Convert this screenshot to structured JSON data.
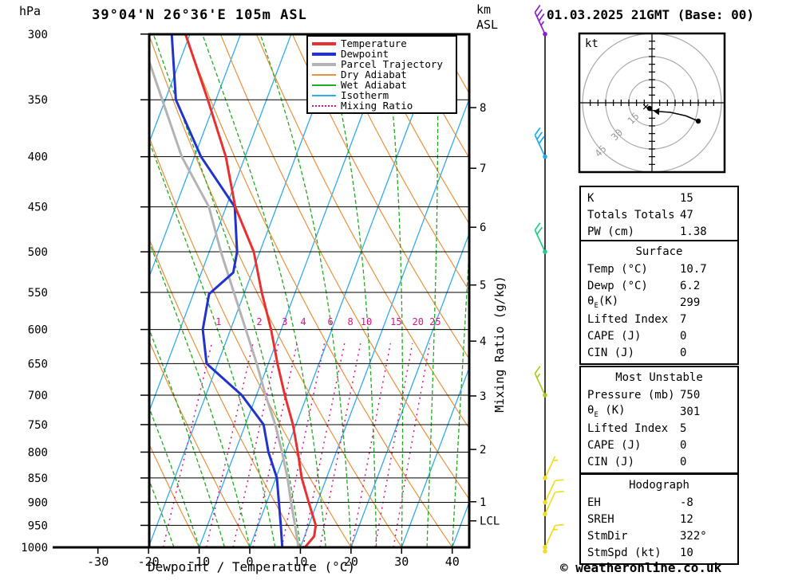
{
  "header": {
    "pressure_unit": "hPa",
    "title": "39°04'N 26°36'E 105m ASL",
    "date": "01.03.2025 21GMT (Base: 00)",
    "altitude_unit_line1": "km",
    "altitude_unit_line2": "ASL"
  },
  "legend": [
    {
      "key": "temperature",
      "label": "Temperature",
      "color": "#e83030",
      "style": "solid-thick"
    },
    {
      "key": "dewpoint",
      "label": "Dewpoint",
      "color": "#2233cc",
      "style": "solid-thick"
    },
    {
      "key": "parcel",
      "label": "Parcel Trajectory",
      "color": "#b3b3b3",
      "style": "solid-thick"
    },
    {
      "key": "dry_adiabat",
      "label": "Dry Adiabat",
      "color": "#e8913e",
      "style": "solid-thin"
    },
    {
      "key": "wet_adiabat",
      "label": "Wet Adiabat",
      "color": "#22aa22",
      "style": "solid-thin"
    },
    {
      "key": "isotherm",
      "label": "Isotherm",
      "color": "#33aaee",
      "style": "solid-thin"
    },
    {
      "key": "mixing_ratio",
      "label": "Mixing Ratio",
      "color": "#dd1188",
      "style": "dotted"
    }
  ],
  "chart_data": {
    "type": "skewt_log_p_sounding",
    "pressure_ticks_hpa": [
      300,
      350,
      400,
      450,
      500,
      550,
      600,
      650,
      700,
      750,
      800,
      850,
      900,
      950,
      1000
    ],
    "temp_ticks_c": [
      -30,
      -20,
      -10,
      0,
      10,
      20,
      30,
      40
    ],
    "temp_axis_label": "Dewpoint / Temperature (°C)",
    "km_ticks": [
      8,
      7,
      6,
      5,
      4,
      3,
      2,
      1
    ],
    "lcl_label": "LCL",
    "lcl_pressure_hpa": 940,
    "mixing_axis_label": "Mixing Ratio (g/kg)",
    "mixing_ratio_lines_gkg": [
      1,
      2,
      3,
      4,
      6,
      8,
      10,
      15,
      20,
      25
    ],
    "isotherm_step_c": 10,
    "dry_adiabat_step_c": 10,
    "wet_adiabat_step_c": 5,
    "series": {
      "temperature_c_by_p": [
        [
          300,
          -50.9
        ],
        [
          350,
          -41.6
        ],
        [
          400,
          -33.8
        ],
        [
          450,
          -28.2
        ],
        [
          500,
          -21.2
        ],
        [
          550,
          -16.6
        ],
        [
          600,
          -12.0
        ],
        [
          650,
          -8.2
        ],
        [
          700,
          -4.4
        ],
        [
          750,
          -0.6
        ],
        [
          800,
          2.4
        ],
        [
          850,
          5.1
        ],
        [
          900,
          8.3
        ],
        [
          950,
          11.4
        ],
        [
          975,
          11.9
        ],
        [
          1000,
          10.9
        ]
      ],
      "dewpoint_c_by_p": [
        [
          300,
          -53.6
        ],
        [
          350,
          -47.9
        ],
        [
          400,
          -38.7
        ],
        [
          450,
          -28.3
        ],
        [
          500,
          -24.5
        ],
        [
          525,
          -23.7
        ],
        [
          552,
          -26.9
        ],
        [
          600,
          -25.5
        ],
        [
          650,
          -22.2
        ],
        [
          700,
          -12.9
        ],
        [
          750,
          -6.4
        ],
        [
          800,
          -3.4
        ],
        [
          850,
          0.2
        ],
        [
          900,
          2.4
        ],
        [
          950,
          4.5
        ],
        [
          1000,
          6.4
        ]
      ],
      "parcel_c_by_p": [
        [
          300,
          -59.9
        ],
        [
          350,
          -50.6
        ],
        [
          400,
          -42.5
        ],
        [
          450,
          -33.4
        ],
        [
          500,
          -27.7
        ],
        [
          550,
          -22.1
        ],
        [
          600,
          -17.0
        ],
        [
          650,
          -12.3
        ],
        [
          700,
          -8.2
        ],
        [
          750,
          -4.1
        ],
        [
          800,
          -0.7
        ],
        [
          850,
          2.3
        ],
        [
          900,
          4.8
        ],
        [
          950,
          7.3
        ],
        [
          1000,
          9.6
        ]
      ]
    }
  },
  "wind_barbs": [
    {
      "pressure_hpa": 300,
      "speed_kt": 35,
      "color": "#8822cc",
      "pointing": "up-left"
    },
    {
      "pressure_hpa": 400,
      "speed_kt": 30,
      "color": "#22aaee",
      "pointing": "up-left"
    },
    {
      "pressure_hpa": 500,
      "speed_kt": 20,
      "color": "#22cc88",
      "pointing": "up-left"
    },
    {
      "pressure_hpa": 700,
      "speed_kt": 15,
      "color": "#aacc22",
      "pointing": "up-left"
    },
    {
      "pressure_hpa": 850,
      "speed_kt": 5,
      "color": "#eedd22",
      "pointing": "up-right"
    },
    {
      "pressure_hpa": 900,
      "speed_kt": 10,
      "color": "#eedd22",
      "pointing": "up-right"
    },
    {
      "pressure_hpa": 925,
      "speed_kt": 10,
      "color": "#eedd22",
      "pointing": "up-right"
    },
    {
      "pressure_hpa": 1000,
      "speed_kt": 15,
      "color": "#eedd22",
      "pointing": "up-right"
    }
  ],
  "hodograph": {
    "unit": "kt",
    "rings_kt": [
      15,
      30,
      45
    ],
    "trace_uv_kt": [
      [
        30,
        -11.9
      ],
      [
        22,
        -8.5
      ],
      [
        12,
        -6.2
      ],
      [
        4.7,
        -5.7
      ]
    ],
    "end_dot_uv_kt": [
      30,
      -11.9
    ],
    "near_origin_dot_uv_kt": [
      -1.6,
      -3.6
    ],
    "cross_marker_uv_kt": [
      -4,
      -2.6
    ]
  },
  "tables": [
    {
      "title": null,
      "rows": [
        [
          "K",
          "15"
        ],
        [
          "Totals Totals",
          "47"
        ],
        [
          "PW (cm)",
          "1.38"
        ]
      ]
    },
    {
      "title": "Surface",
      "rows": [
        [
          "Temp (°C)",
          "10.7"
        ],
        [
          "Dewp (°C)",
          "6.2"
        ],
        [
          "θE(K)",
          "299"
        ],
        [
          "Lifted Index",
          "7"
        ],
        [
          "CAPE (J)",
          "0"
        ],
        [
          "CIN (J)",
          "0"
        ]
      ]
    },
    {
      "title": "Most Unstable",
      "rows": [
        [
          "Pressure (mb)",
          "750"
        ],
        [
          "θE (K)",
          "301"
        ],
        [
          "Lifted Index",
          "5"
        ],
        [
          "CAPE (J)",
          "0"
        ],
        [
          "CIN (J)",
          "0"
        ]
      ]
    },
    {
      "title": "Hodograph",
      "rows": [
        [
          "EH",
          "-8"
        ],
        [
          "SREH",
          "12"
        ],
        [
          "StmDir",
          "322°"
        ],
        [
          "StmSpd (kt)",
          "10"
        ]
      ]
    }
  ],
  "footer": {
    "copyright": "© weatheronline.co.uk"
  }
}
